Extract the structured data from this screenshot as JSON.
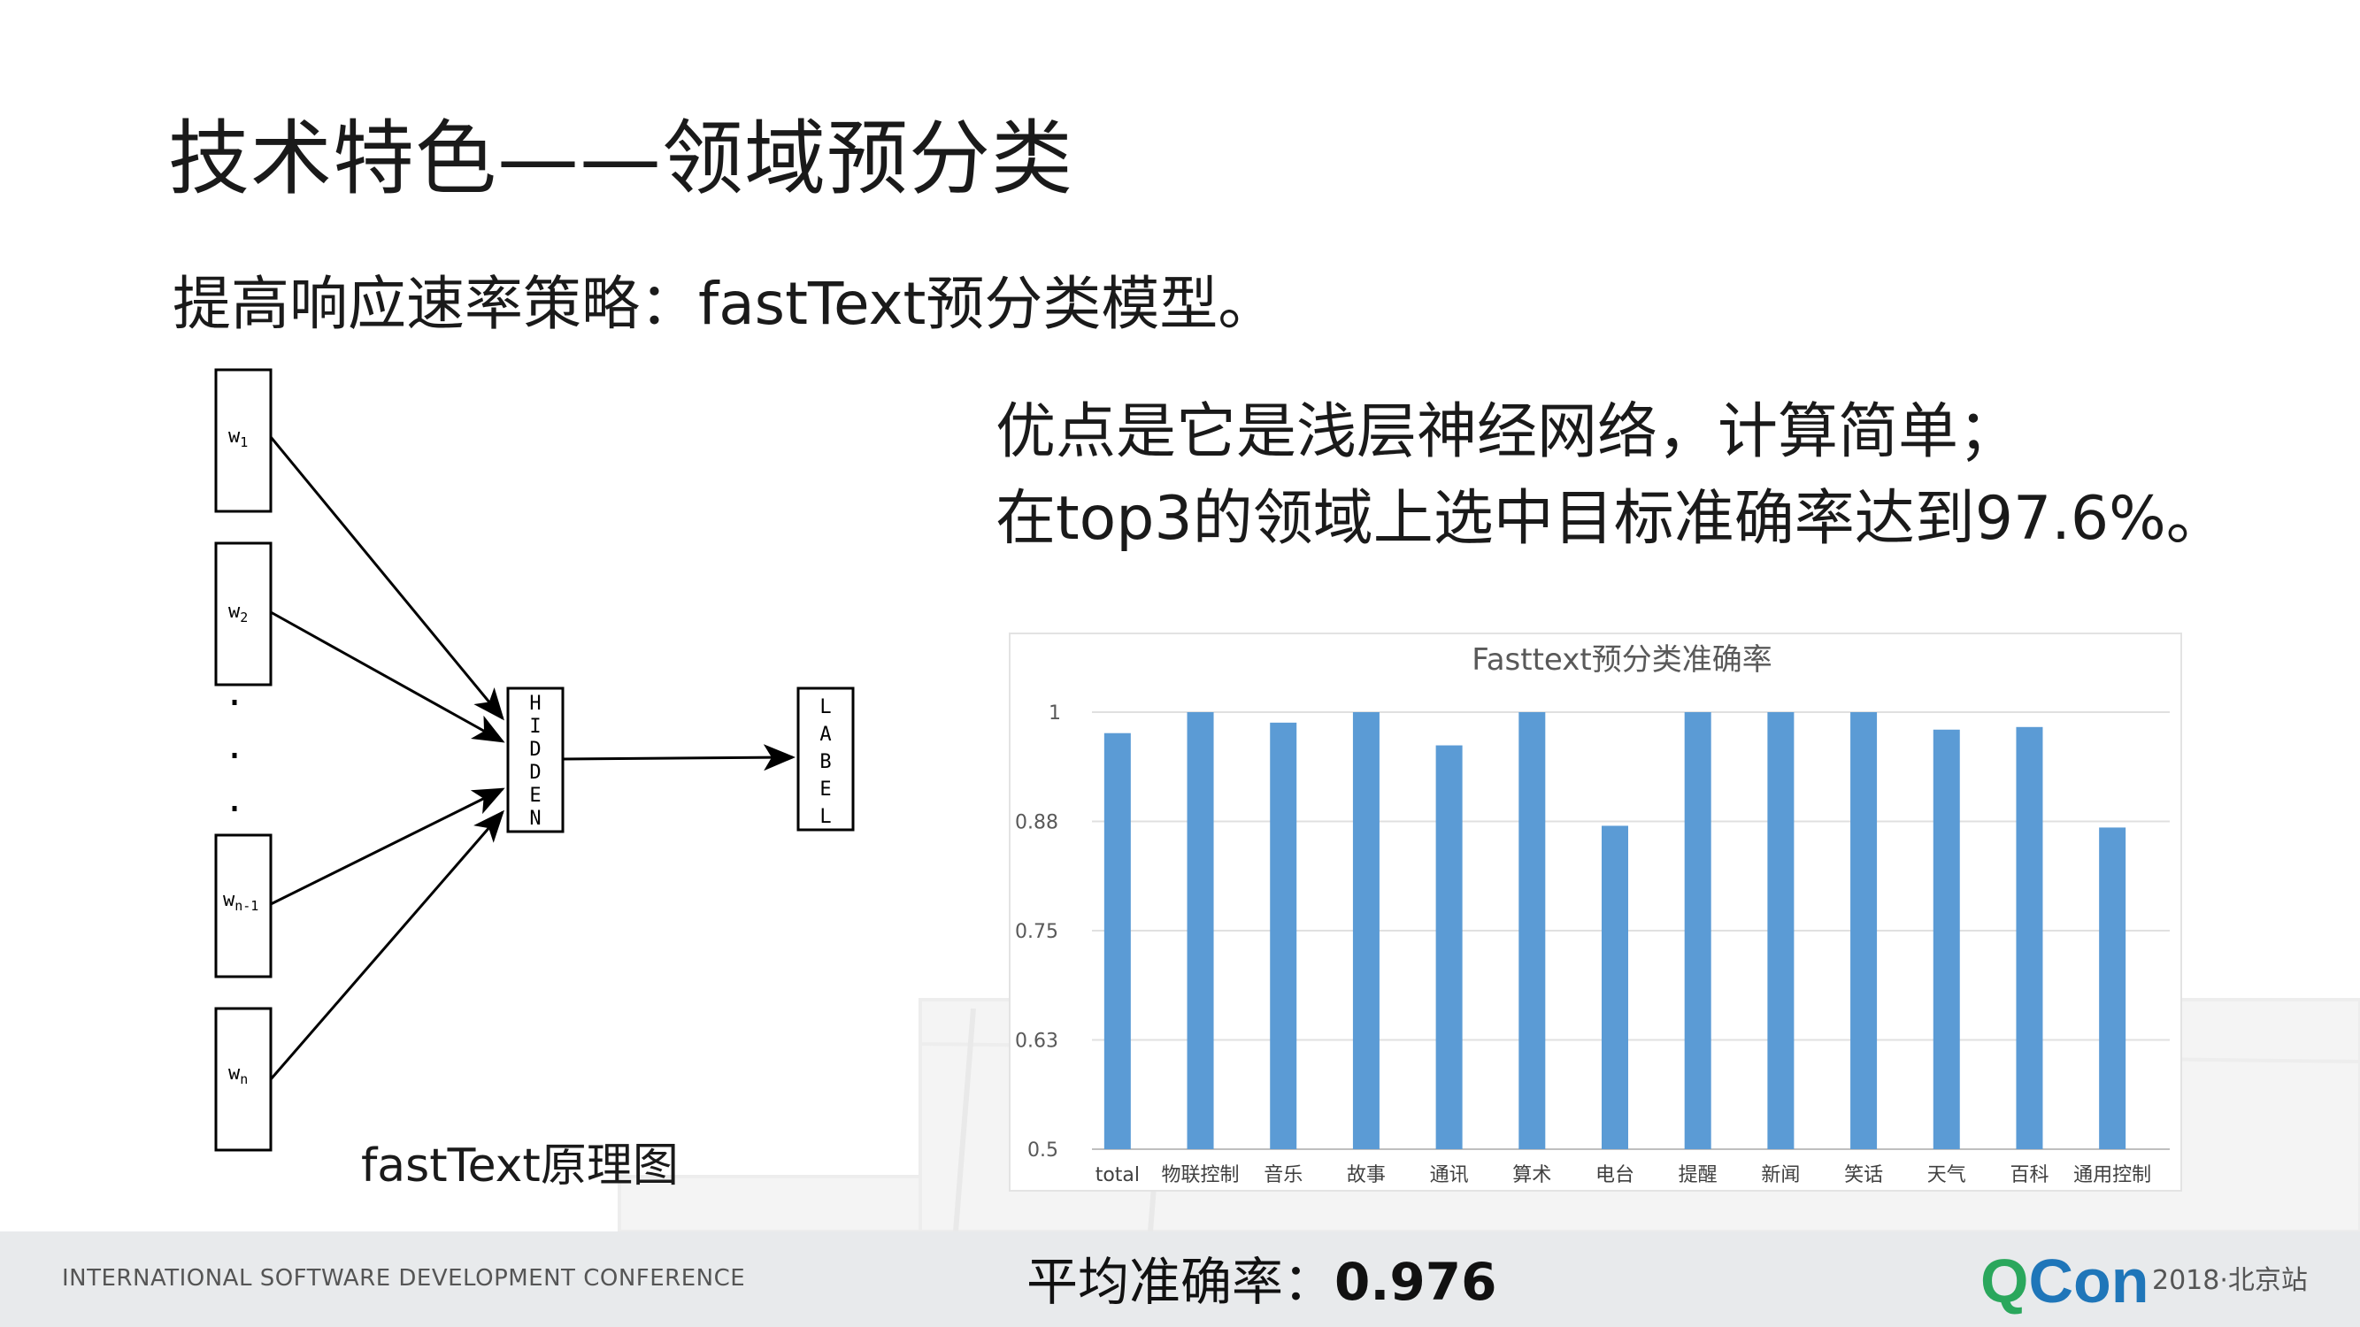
{
  "slide": {
    "title": "技术特色——领域预分类",
    "subtitle": "提高响应速率策略：fastText预分类模型。",
    "advantages": [
      "优点是它是浅层神经网络，计算简单；",
      "在top3的领域上选中目标准确率达到97.6%。"
    ]
  },
  "diagram": {
    "inputs": [
      {
        "main": "w",
        "sub": "1"
      },
      {
        "main": "w",
        "sub": "2"
      },
      {
        "main": "w",
        "sub": "n-1"
      },
      {
        "main": "w",
        "sub": "n"
      }
    ],
    "dots": [
      "·",
      "·",
      "·"
    ],
    "hidden_letters": [
      "H",
      "I",
      "D",
      "D",
      "E",
      "N"
    ],
    "label_letters": [
      "L",
      "A",
      "B",
      "E",
      "L"
    ],
    "caption": "fastText原理图"
  },
  "chart_data": {
    "type": "bar",
    "title": "Fasttext预分类准确率",
    "categories": [
      "total",
      "物联控制",
      "音乐",
      "故事",
      "通讯",
      "算术",
      "电台",
      "提醒",
      "新闻",
      "笑话",
      "天气",
      "百科",
      "通用控制"
    ],
    "values": [
      0.976,
      1.0,
      0.988,
      1.0,
      0.962,
      1.0,
      0.87,
      1.0,
      1.0,
      1.0,
      0.98,
      0.983,
      0.868
    ],
    "ylim": [
      0.5,
      1.0
    ],
    "yticks": [
      {
        "value": 0.5,
        "label": "0.5"
      },
      {
        "value": 0.625,
        "label": "0.63"
      },
      {
        "value": 0.75,
        "label": "0.75"
      },
      {
        "value": 0.875,
        "label": "0.88"
      },
      {
        "value": 1.0,
        "label": "1"
      }
    ],
    "grid": true,
    "bar_color": "#5b9bd5"
  },
  "footer": {
    "conference": "INTERNATIONAL SOFTWARE DEVELOPMENT CONFERENCE",
    "avg_label": "平均准确率：",
    "avg_value": "0.976",
    "logo_q": "Q",
    "logo_con": "Con",
    "logo_sub": "2018·北京站"
  }
}
